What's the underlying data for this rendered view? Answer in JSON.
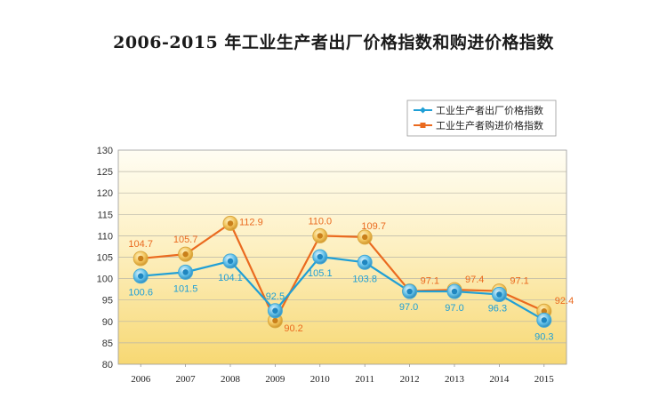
{
  "chart_data": {
    "type": "line",
    "title": "2006-2015 年工业生产者出厂价格指数和购进价格指数",
    "xlabel": "",
    "ylabel": "",
    "categories": [
      "2006",
      "2007",
      "2008",
      "2009",
      "2010",
      "2011",
      "2012",
      "2013",
      "2014",
      "2015"
    ],
    "ylim": [
      80,
      130
    ],
    "yticks": [
      80,
      85,
      90,
      95,
      100,
      105,
      110,
      115,
      120,
      125,
      130
    ],
    "grid": true,
    "legend_position": "top-right",
    "series": [
      {
        "name": "工业生产者出厂价格指数",
        "color": "#1f9fd6",
        "values": [
          100.6,
          101.5,
          104.1,
          92.5,
          105.1,
          103.8,
          97.0,
          97.0,
          96.3,
          90.3
        ],
        "labels": [
          "100.6",
          "101.5",
          "104.1",
          "92.5",
          "105.1",
          "103.8",
          "97.0",
          "97.0",
          "96.3",
          "90.3"
        ]
      },
      {
        "name": "工业生产者购进价格指数",
        "color": "#ea6a1f",
        "values": [
          104.7,
          105.7,
          112.9,
          90.2,
          110.0,
          109.7,
          97.1,
          97.4,
          97.1,
          92.4
        ],
        "labels": [
          "104.7",
          "105.7",
          "112.9",
          "90.2",
          "110.0",
          "109.7",
          "97.1",
          "97.4",
          "97.1",
          "92.4"
        ]
      }
    ]
  }
}
